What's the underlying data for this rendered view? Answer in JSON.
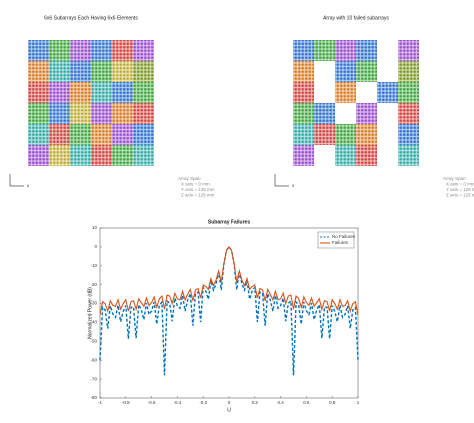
{
  "chart_data": [
    {
      "type": "array",
      "title": "6x6 Subarrays Each Having 6x6 Elements",
      "cells": [
        [
          "#3f7fd6",
          "#4fb04f",
          "#a35bd6",
          "#3f7fd6",
          "#d9534f",
          "#a35bd6"
        ],
        [
          "#e0893a",
          "#45b5b0",
          "#3f7fd6",
          "#4fb04f",
          "#c9b84a",
          "#8aa43a"
        ],
        [
          "#d9534f",
          "#a35bd6",
          "#e0893a",
          "#45b5b0",
          "#3f7fd6",
          "#4fb04f"
        ],
        [
          "#4fb04f",
          "#3f7fd6",
          "#c9b84a",
          "#a35bd6",
          "#e0893a",
          "#d9534f"
        ],
        [
          "#45b5b0",
          "#d9534f",
          "#4fb04f",
          "#e0893a",
          "#a35bd6",
          "#3f7fd6"
        ],
        [
          "#a35bd6",
          "#c9b84a",
          "#45b5b0",
          "#d9534f",
          "#4fb04f",
          "#45b5b0"
        ]
      ],
      "triad_label": "x",
      "annotation": [
        "Array Span:",
        "X axis = 0 mm",
        "Y axis = 125 mm",
        "Z axis = 125 mm"
      ]
    },
    {
      "type": "array",
      "title": "Array with 10 failed subarrays",
      "cells": [
        [
          "#3f7fd6",
          "#4fb04f",
          "#a35bd6",
          "#3f7fd6",
          null,
          "#a35bd6"
        ],
        [
          "#e0893a",
          null,
          "#3f7fd6",
          "#4fb04f",
          null,
          "#8aa43a"
        ],
        [
          "#d9534f",
          null,
          "#e0893a",
          null,
          "#3f7fd6",
          "#4fb04f"
        ],
        [
          "#4fb04f",
          "#3f7fd6",
          null,
          "#a35bd6",
          null,
          "#d9534f"
        ],
        [
          "#45b5b0",
          "#d9534f",
          "#4fb04f",
          "#e0893a",
          null,
          "#3f7fd6"
        ],
        [
          "#a35bd6",
          null,
          "#45b5b0",
          "#d9534f",
          null,
          "#45b5b0"
        ]
      ],
      "triad_label": "x",
      "annotation": [
        "Array Span:",
        "X axis = 0 mm",
        "Y axis = 125 mm",
        "Z axis = 125 mm"
      ]
    },
    {
      "type": "line",
      "title": "Subarray Failures",
      "xlabel": "U",
      "ylabel": "Normalized Power (dB)",
      "x": [
        -1,
        -0.98,
        -0.96,
        -0.94,
        -0.92,
        -0.9,
        -0.88,
        -0.86,
        -0.84,
        -0.82,
        -0.8,
        -0.78,
        -0.76,
        -0.74,
        -0.72,
        -0.7,
        -0.68,
        -0.66,
        -0.64,
        -0.62,
        -0.6,
        -0.58,
        -0.56,
        -0.54,
        -0.52,
        -0.5,
        -0.48,
        -0.46,
        -0.44,
        -0.42,
        -0.4,
        -0.38,
        -0.36,
        -0.34,
        -0.32,
        -0.3,
        -0.28,
        -0.26,
        -0.24,
        -0.22,
        -0.2,
        -0.18,
        -0.16,
        -0.14,
        -0.12,
        -0.1,
        -0.08,
        -0.06,
        -0.04,
        -0.02,
        0,
        0.02,
        0.04,
        0.06,
        0.08,
        0.1,
        0.12,
        0.14,
        0.16,
        0.18,
        0.2,
        0.22,
        0.24,
        0.26,
        0.28,
        0.3,
        0.32,
        0.34,
        0.36,
        0.38,
        0.4,
        0.42,
        0.44,
        0.46,
        0.48,
        0.5,
        0.52,
        0.54,
        0.56,
        0.58,
        0.6,
        0.62,
        0.64,
        0.66,
        0.68,
        0.7,
        0.72,
        0.74,
        0.76,
        0.78,
        0.8,
        0.82,
        0.84,
        0.86,
        0.88,
        0.9,
        0.92,
        0.94,
        0.96,
        0.98,
        1
      ],
      "series": [
        {
          "name": "No Failures",
          "color": "#0072bd",
          "style": "dashed",
          "values": [
            -60,
            -32,
            -33.4,
            -43.2,
            -31.2,
            -35.6,
            -37.3,
            -30.9,
            -39.6,
            -34.1,
            -31.1,
            -48.6,
            -32,
            -31.8,
            -48.3,
            -30.6,
            -33.3,
            -38.5,
            -29.7,
            -35.8,
            -33.9,
            -29.2,
            -40.9,
            -30.9,
            -29.2,
            -68,
            -28.7,
            -29.8,
            -39.3,
            -27.1,
            -31.1,
            -32.5,
            -25.7,
            -34,
            -28.1,
            -24.7,
            -41.7,
            -24.6,
            -23.9,
            -39.8,
            -21.4,
            -23.3,
            -27.7,
            -17.9,
            -22.9,
            -19.6,
            -13.2,
            -22.7,
            -9.3,
            -1.9,
            0,
            -1.9,
            -9.3,
            -22.7,
            -13.2,
            -19.6,
            -22.9,
            -17.9,
            -27.7,
            -23.3,
            -21.4,
            -39.8,
            -23.9,
            -24.6,
            -41.7,
            -24.7,
            -28.1,
            -34,
            -25.7,
            -32.5,
            -31.1,
            -27.1,
            -39.3,
            -29.8,
            -28.7,
            -68,
            -29.2,
            -30.9,
            -40.9,
            -29.2,
            -33.9,
            -35.8,
            -29.7,
            -38.5,
            -33.3,
            -30.6,
            -48.3,
            -31.8,
            -32,
            -48.6,
            -31.1,
            -34.1,
            -39.6,
            -30.9,
            -37.3,
            -35.6,
            -31.2,
            -43.2,
            -33.4,
            -32,
            -60
          ]
        },
        {
          "name": "Failures",
          "color": "#d95319",
          "style": "solid",
          "values": [
            -36,
            -29,
            -30,
            -34,
            -28.5,
            -31,
            -31.5,
            -28,
            -33,
            -30,
            -28,
            -34,
            -29,
            -28.5,
            -33,
            -27.5,
            -29.5,
            -31.5,
            -27,
            -31,
            -29.5,
            -26.5,
            -32,
            -27.5,
            -26,
            -33,
            -25.5,
            -26,
            -30,
            -24.5,
            -27.5,
            -28,
            -23.5,
            -28,
            -25,
            -22.5,
            -28.5,
            -22.8,
            -22,
            -27,
            -20.2,
            -21,
            -22.5,
            -16.8,
            -20.5,
            -17.5,
            -12.8,
            -18.5,
            -9,
            -2.1,
            0,
            -2.1,
            -9,
            -18.5,
            -12.8,
            -17.5,
            -20.5,
            -16.8,
            -22.5,
            -21,
            -20.2,
            -27,
            -22,
            -22.8,
            -28.5,
            -22.5,
            -25,
            -28,
            -23.5,
            -28,
            -27.5,
            -24.5,
            -30,
            -26,
            -25.5,
            -33,
            -26,
            -27.5,
            -32,
            -26.5,
            -29.5,
            -31,
            -27,
            -31.5,
            -29.5,
            -27.5,
            -33,
            -28.5,
            -29,
            -34,
            -28,
            -30,
            -33,
            -28,
            -31.5,
            -31,
            -28.5,
            -34,
            -30,
            -29,
            -36
          ]
        }
      ],
      "xlim": [
        -1,
        1
      ],
      "ylim": [
        -80,
        10
      ],
      "xticks": [
        -1,
        -0.8,
        -0.6,
        -0.4,
        -0.2,
        0,
        0.2,
        0.4,
        0.6,
        0.8,
        1
      ],
      "yticks": [
        10,
        0,
        -10,
        -20,
        -30,
        -40,
        -50,
        -60,
        -70,
        -80
      ],
      "legend": "top-right"
    }
  ]
}
